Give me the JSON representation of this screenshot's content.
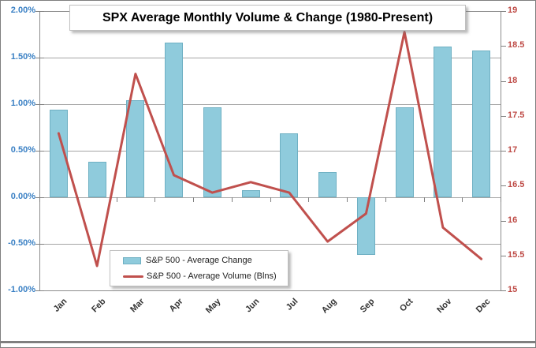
{
  "title": "SPX Average Monthly Volume & Change (1980-Present)",
  "legend": {
    "items": [
      {
        "label": "S&P 500 - Average Change",
        "swatch": "bar-swatch-icon"
      },
      {
        "label": "S&P 500 - Average Volume (Blns)",
        "swatch": "line-swatch-icon"
      }
    ]
  },
  "colors": {
    "bar_fill": "#8fcbdc",
    "bar_border": "#6fb0c3",
    "line": "#c0504d",
    "left_axis_labels": "#3a80c4",
    "right_axis_labels": "#be4a45",
    "gridline": "#a6a6a6"
  },
  "chart_data": {
    "type": "combo",
    "categories": [
      "Jan",
      "Feb",
      "Mar",
      "Apr",
      "May",
      "Jun",
      "Jul",
      "Aug",
      "Sep",
      "Oct",
      "Nov",
      "Dec"
    ],
    "series": [
      {
        "name": "S&P 500 - Average Change",
        "type": "bar",
        "axis": "left",
        "values": [
          0.94,
          0.38,
          1.04,
          1.66,
          0.97,
          0.08,
          0.69,
          0.27,
          -0.62,
          0.97,
          1.62,
          1.58
        ]
      },
      {
        "name": "S&P 500 - Average Volume (Blns)",
        "type": "line",
        "axis": "right",
        "values": [
          17.25,
          15.35,
          18.1,
          16.65,
          16.4,
          16.55,
          16.4,
          15.7,
          16.1,
          18.7,
          15.9,
          15.45
        ]
      }
    ],
    "left_axis": {
      "min": -1.0,
      "max": 2.0,
      "step": 0.5,
      "format": "percent",
      "labels": [
        "2.00%",
        "1.50%",
        "1.00%",
        "0.50%",
        "0.00%",
        "-0.50%",
        "-1.00%"
      ]
    },
    "right_axis": {
      "min": 15,
      "max": 19,
      "step": 0.5,
      "labels": [
        "19",
        "18.5",
        "18",
        "17.5",
        "17",
        "16.5",
        "16",
        "15.5",
        "15"
      ]
    },
    "title": "SPX Average Monthly Volume & Change (1980-Present)",
    "grid": true,
    "legend_position": "inside-bottom-left"
  }
}
